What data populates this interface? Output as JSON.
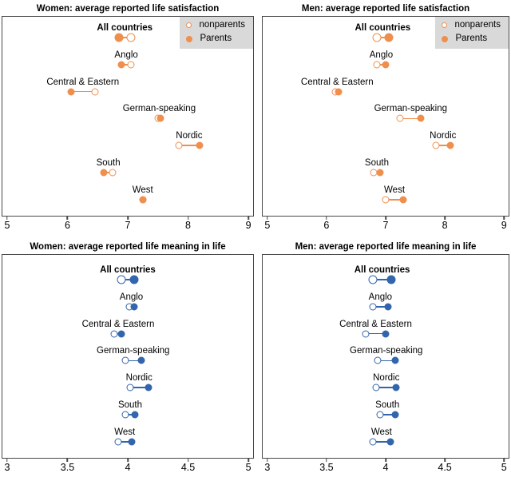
{
  "legend": {
    "nonparents_label": "nonparents",
    "parents_label": "Parents"
  },
  "colors": {
    "satisfaction_accent": "#EF8F4E",
    "meaning_accent": "#3265AD",
    "legend_background": "#D9D9D9",
    "panel_border": "#474747"
  },
  "chart_data": [
    {
      "type": "scatter",
      "title": "Women: average reported life satisfaction",
      "xlim": [
        5,
        9
      ],
      "xticks": [
        5,
        6,
        7,
        8,
        9
      ],
      "xtick_labels": [
        "5",
        "6",
        "7",
        "8",
        "9"
      ],
      "grid": false,
      "legend_position": "top-right",
      "color": "#EF8F4E",
      "categories": [
        "All countries",
        "Anglo",
        "Central & Eastern",
        "German-speaking",
        "Nordic",
        "South",
        "West"
      ],
      "series": [
        {
          "name": "nonparents",
          "values": [
            7.05,
            7.05,
            6.45,
            7.5,
            7.85,
            6.75,
            7.25
          ]
        },
        {
          "name": "Parents",
          "values": [
            6.85,
            6.9,
            6.05,
            7.55,
            8.2,
            6.6,
            7.25
          ]
        }
      ]
    },
    {
      "type": "scatter",
      "title": "Men: average reported life satisfaction",
      "xlim": [
        5,
        9
      ],
      "xticks": [
        5,
        6,
        7,
        8,
        9
      ],
      "xtick_labels": [
        "5",
        "6",
        "7",
        "8",
        "9"
      ],
      "grid": false,
      "legend_position": "top-right",
      "color": "#EF8F4E",
      "categories": [
        "All countries",
        "Anglo",
        "Central & Eastern",
        "German-speaking",
        "Nordic",
        "South",
        "West"
      ],
      "series": [
        {
          "name": "nonparents",
          "values": [
            6.85,
            6.85,
            6.15,
            7.25,
            7.85,
            6.8,
            7.0
          ]
        },
        {
          "name": "Parents",
          "values": [
            7.05,
            7.0,
            6.2,
            7.6,
            8.1,
            6.9,
            7.3
          ]
        }
      ]
    },
    {
      "type": "scatter",
      "title": "Women: average reported life meaning in life",
      "xlim": [
        3,
        5
      ],
      "xticks": [
        3,
        3.5,
        4,
        4.5,
        5
      ],
      "xtick_labels": [
        "3",
        "3.5",
        "4",
        "4.5",
        "5"
      ],
      "grid": false,
      "legend_position": "none",
      "color": "#3265AD",
      "categories": [
        "All countries",
        "Anglo",
        "Central & Eastern",
        "German-speaking",
        "Nordic",
        "South",
        "West"
      ],
      "series": [
        {
          "name": "nonparents",
          "values": [
            3.95,
            4.01,
            3.89,
            3.98,
            4.02,
            3.98,
            3.92
          ]
        },
        {
          "name": "Parents",
          "values": [
            4.05,
            4.05,
            3.95,
            4.11,
            4.17,
            4.06,
            4.03
          ]
        }
      ]
    },
    {
      "type": "scatter",
      "title": "Men: average reported life meaning in life",
      "xlim": [
        3,
        5
      ],
      "xticks": [
        3,
        3.5,
        4,
        4.5,
        5
      ],
      "xtick_labels": [
        "3",
        "3.5",
        "4",
        "4.5",
        "5"
      ],
      "grid": false,
      "legend_position": "none",
      "color": "#3265AD",
      "categories": [
        "All countries",
        "Anglo",
        "Central & Eastern",
        "German-speaking",
        "Nordic",
        "South",
        "West"
      ],
      "series": [
        {
          "name": "nonparents",
          "values": [
            3.89,
            3.89,
            3.83,
            3.93,
            3.92,
            3.95,
            3.89
          ]
        },
        {
          "name": "Parents",
          "values": [
            4.05,
            4.02,
            4.0,
            4.08,
            4.09,
            4.08,
            4.04
          ]
        }
      ]
    }
  ]
}
